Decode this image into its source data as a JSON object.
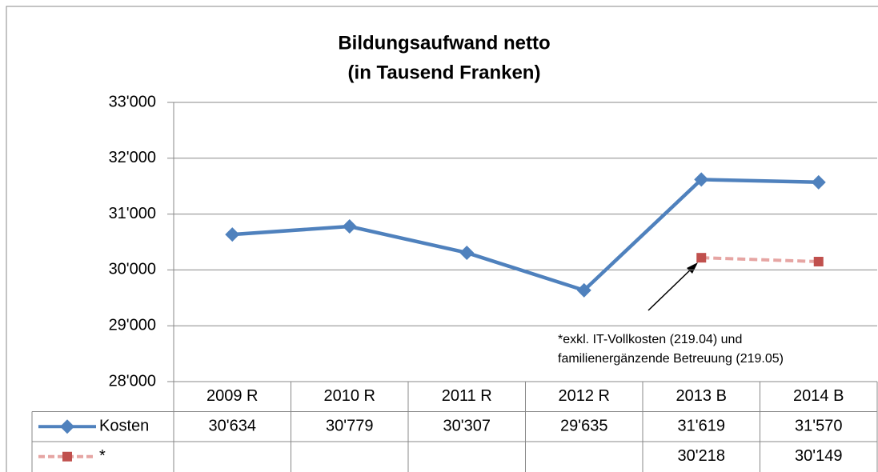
{
  "chart_data": {
    "type": "line",
    "title": [
      "Bildungsaufwand netto",
      "(in Tausend Franken)"
    ],
    "categories": [
      "2009 R",
      "2010 R",
      "2011 R",
      "2012 R",
      "2013 B",
      "2014 B"
    ],
    "series": [
      {
        "name": "Kosten",
        "color": "#4f81bd",
        "marker": "diamond",
        "values": [
          30634,
          30779,
          30307,
          29635,
          31619,
          31570
        ],
        "value_labels": [
          "30'634",
          "30'779",
          "30'307",
          "29'635",
          "31'619",
          "31'570"
        ]
      },
      {
        "name": "*",
        "color": "#c0504d",
        "marker": "square",
        "dashed": true,
        "values": [
          null,
          null,
          null,
          null,
          30218,
          30149
        ],
        "value_labels": [
          null,
          null,
          null,
          null,
          "30'218",
          "30'149"
        ]
      }
    ],
    "ylim": [
      28000,
      33000
    ],
    "yticks": [
      {
        "value": 28000,
        "label": "28'000"
      },
      {
        "value": 29000,
        "label": "29'000"
      },
      {
        "value": 30000,
        "label": "30'000"
      },
      {
        "value": 31000,
        "label": "31'000"
      },
      {
        "value": 32000,
        "label": "32'000"
      },
      {
        "value": 33000,
        "label": "33'000"
      }
    ],
    "grid": true,
    "annotation": [
      "*exkl. IT-Vollkosten (219.04) und",
      "familienergänzende Betreuung (219.05)"
    ]
  }
}
